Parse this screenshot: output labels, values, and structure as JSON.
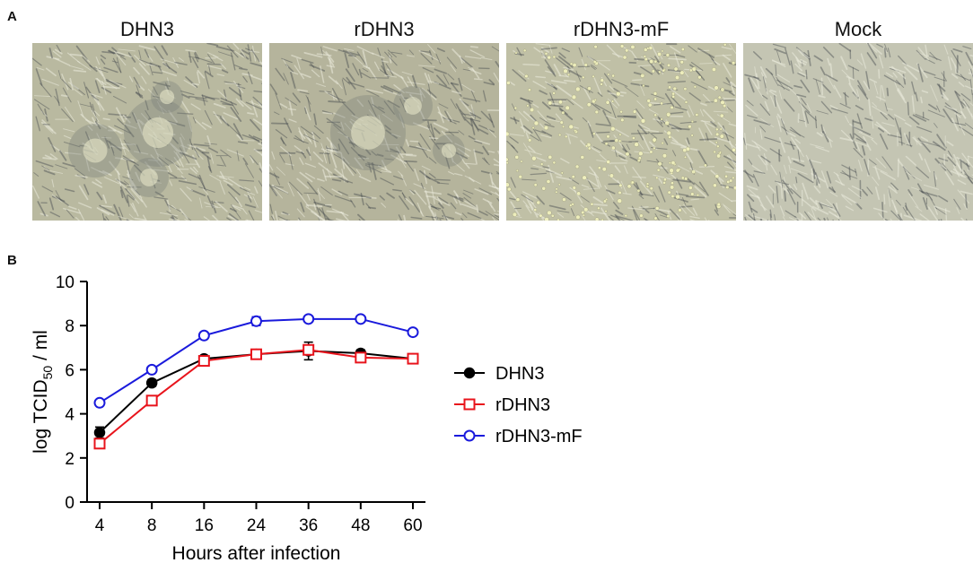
{
  "panel_a": {
    "letter": "A",
    "images": [
      {
        "label": "DHN3",
        "tone": "#b9b9a0",
        "cpe": "large"
      },
      {
        "label": "rDHN3",
        "tone": "#b5b49c",
        "cpe": "large"
      },
      {
        "label": "rDHN3-mF",
        "tone": "#c0c0a6",
        "cpe": "dispersed"
      },
      {
        "label": "Mock",
        "tone": "#c4c5b3",
        "cpe": "none"
      }
    ]
  },
  "panel_b": {
    "letter": "B"
  },
  "chart_data": {
    "type": "line",
    "title": "",
    "xlabel": "Hours after infection",
    "ylabel": "log TCID50 / ml",
    "ylabel_parts": {
      "main": "log TCID",
      "sub": "50",
      "tail": " / ml"
    },
    "categories": [
      "4",
      "8",
      "16",
      "24",
      "36",
      "48",
      "60"
    ],
    "ylim": [
      0,
      10
    ],
    "yticks": [
      0,
      2,
      4,
      6,
      8,
      10
    ],
    "legend_position": "right",
    "series": [
      {
        "name": "DHN3",
        "color": "#000000",
        "marker": "filled-circle",
        "values": [
          3.15,
          5.4,
          6.5,
          6.7,
          6.85,
          6.75,
          6.5
        ],
        "errors": [
          0.25,
          0.15,
          0.05,
          0.05,
          0.4,
          0.15,
          0.05
        ]
      },
      {
        "name": "rDHN3",
        "color": "#e8141c",
        "marker": "open-square",
        "values": [
          2.65,
          4.6,
          6.4,
          6.7,
          6.9,
          6.55,
          6.5
        ],
        "errors": [
          0.05,
          0.05,
          0.05,
          0.05,
          0.2,
          0.05,
          0.05
        ]
      },
      {
        "name": "rDHN3-mF",
        "color": "#1a1adc",
        "marker": "open-circle",
        "values": [
          4.5,
          6.0,
          7.55,
          8.2,
          8.3,
          8.3,
          7.7
        ],
        "errors": [
          0.05,
          0.1,
          0.05,
          0.2,
          0.05,
          0.05,
          0.05
        ]
      }
    ]
  }
}
